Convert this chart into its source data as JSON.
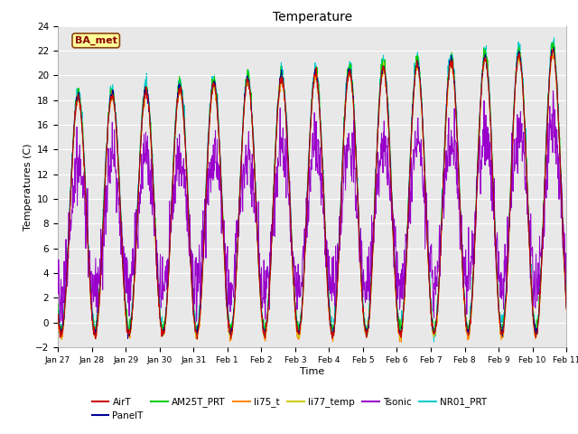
{
  "title": "Temperature",
  "xlabel": "Time",
  "ylabel": "Temperatures (C)",
  "ylim": [
    -2,
    24
  ],
  "yticks": [
    -2,
    0,
    2,
    4,
    6,
    8,
    10,
    12,
    14,
    16,
    18,
    20,
    22,
    24
  ],
  "xtick_labels": [
    "Jan 27",
    "Jan 28",
    "Jan 29",
    "Jan 30",
    "Jan 31",
    "Feb 1",
    "Feb 2",
    "Feb 3",
    "Feb 4",
    "Feb 5",
    "Feb 6",
    "Feb 7",
    "Feb 8",
    "Feb 9",
    "Feb 10",
    "Feb 11"
  ],
  "annotation_text": "BA_met",
  "annotation_bg": "#FFFF99",
  "annotation_border": "#8B4513",
  "series_colors": {
    "AirT": "#CC0000",
    "PanelT": "#000099",
    "AM25T_PRT": "#00CC00",
    "li75_t": "#FF8800",
    "li77_temp": "#CCCC00",
    "Tsonic": "#9900CC",
    "NR01_PRT": "#00CCCC"
  },
  "bg_color": "#E8E8E8",
  "fig_bg": "#FFFFFF",
  "n_days": 15,
  "points_per_day": 96
}
